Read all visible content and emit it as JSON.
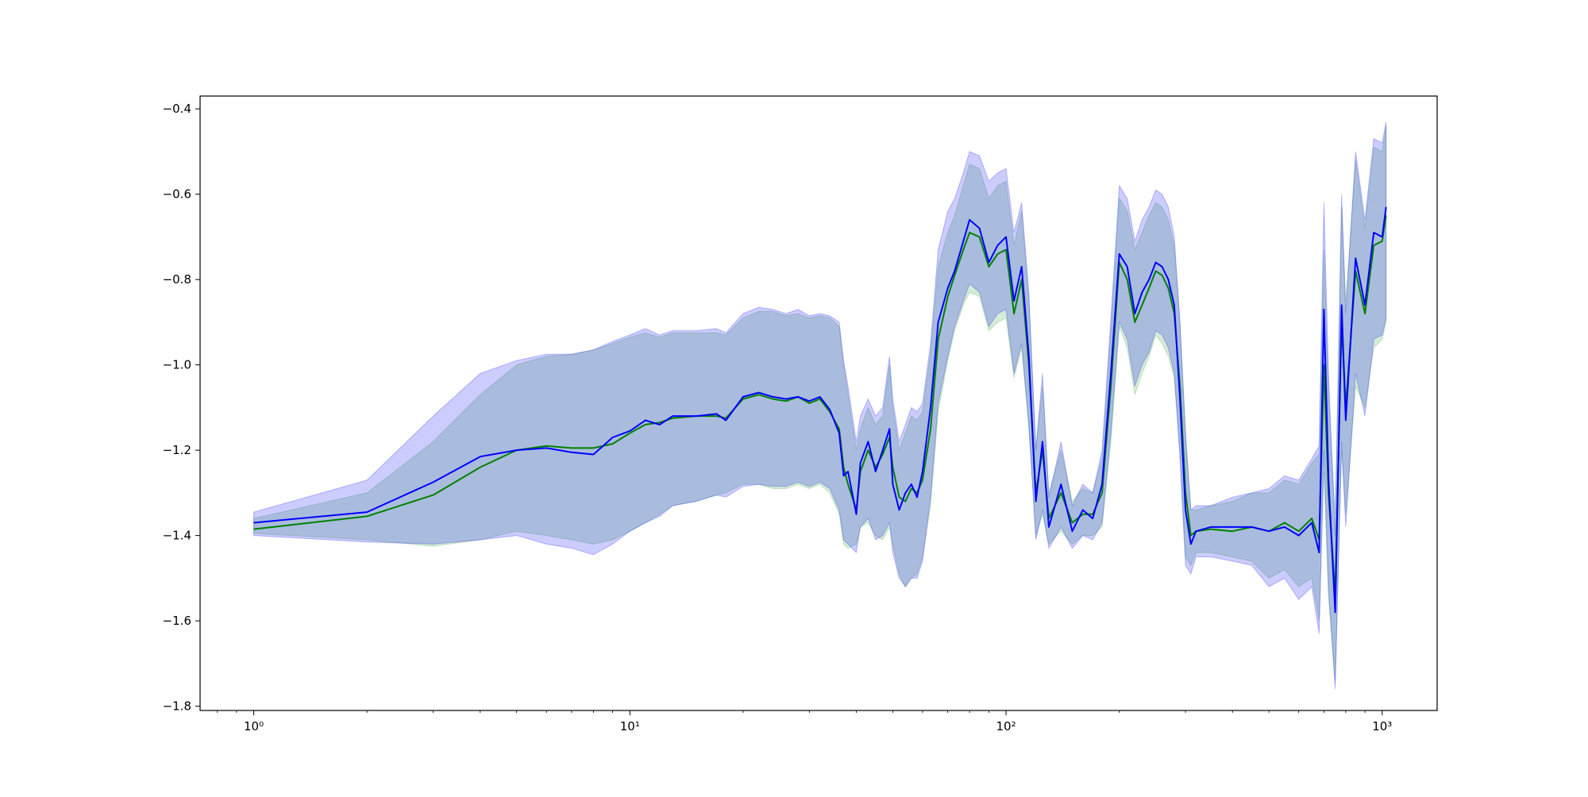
{
  "chart_data": {
    "type": "line",
    "title": "",
    "xlabel": "",
    "ylabel": "",
    "xscale": "log",
    "xlim": [
      0.72,
      1400
    ],
    "ylim": [
      -1.81,
      -0.37
    ],
    "grid": false,
    "legend": "none",
    "x_ticks": [
      {
        "value": 1,
        "label": "10⁰"
      },
      {
        "value": 10,
        "label": "10¹"
      },
      {
        "value": 100,
        "label": "10²"
      },
      {
        "value": 1000,
        "label": "10³"
      }
    ],
    "y_ticks": [
      {
        "value": -0.4,
        "label": "−0.4"
      },
      {
        "value": -0.6,
        "label": "−0.6"
      },
      {
        "value": -0.8,
        "label": "−0.8"
      },
      {
        "value": -1.0,
        "label": "−1.0"
      },
      {
        "value": -1.2,
        "label": "−1.2"
      },
      {
        "value": -1.4,
        "label": "−1.4"
      },
      {
        "value": -1.6,
        "label": "−1.6"
      },
      {
        "value": -1.8,
        "label": "−1.8"
      }
    ],
    "series": [
      {
        "color": "#008000",
        "band_color": "#2ca02c",
        "x": [
          1,
          2,
          3,
          4,
          5,
          6,
          7,
          8,
          9,
          10,
          11,
          12,
          13,
          15,
          17,
          18,
          20,
          22,
          24,
          26,
          28,
          30,
          32,
          34,
          36,
          37,
          38,
          40,
          41,
          43,
          45,
          47,
          49,
          50,
          52,
          54,
          56,
          58,
          60,
          63,
          66,
          70,
          73,
          77,
          80,
          85,
          90,
          95,
          100,
          105,
          110,
          115,
          120,
          125,
          130,
          140,
          150,
          160,
          170,
          180,
          190,
          200,
          210,
          220,
          230,
          240,
          250,
          260,
          270,
          280,
          290,
          300,
          310,
          320,
          350,
          400,
          450,
          500,
          550,
          600,
          650,
          680,
          700,
          720,
          750,
          780,
          800,
          850,
          900,
          950,
          1000,
          1024
        ],
        "y": [
          -1.385,
          -1.355,
          -1.305,
          -1.24,
          -1.2,
          -1.19,
          -1.195,
          -1.195,
          -1.185,
          -1.16,
          -1.14,
          -1.135,
          -1.125,
          -1.12,
          -1.12,
          -1.125,
          -1.08,
          -1.07,
          -1.08,
          -1.085,
          -1.075,
          -1.09,
          -1.08,
          -1.11,
          -1.15,
          -1.24,
          -1.28,
          -1.34,
          -1.25,
          -1.2,
          -1.24,
          -1.21,
          -1.17,
          -1.24,
          -1.31,
          -1.32,
          -1.29,
          -1.3,
          -1.27,
          -1.15,
          -0.94,
          -0.84,
          -0.79,
          -0.73,
          -0.69,
          -0.7,
          -0.77,
          -0.74,
          -0.73,
          -0.88,
          -0.8,
          -1.0,
          -1.3,
          -1.2,
          -1.36,
          -1.3,
          -1.37,
          -1.35,
          -1.35,
          -1.3,
          -1.05,
          -0.76,
          -0.8,
          -0.9,
          -0.86,
          -0.82,
          -0.78,
          -0.79,
          -0.82,
          -0.88,
          -1.05,
          -1.3,
          -1.4,
          -1.39,
          -1.385,
          -1.39,
          -1.38,
          -1.39,
          -1.37,
          -1.39,
          -1.36,
          -1.41,
          -1.0,
          -1.3,
          -1.54,
          -0.9,
          -1.1,
          -0.78,
          -0.88,
          -0.72,
          -0.71,
          -0.65
        ],
        "band_low": [
          -1.395,
          -1.41,
          -1.425,
          -1.41,
          -1.39,
          -1.4,
          -1.41,
          -1.42,
          -1.41,
          -1.39,
          -1.37,
          -1.35,
          -1.33,
          -1.32,
          -1.305,
          -1.3,
          -1.28,
          -1.28,
          -1.29,
          -1.29,
          -1.28,
          -1.29,
          -1.28,
          -1.3,
          -1.35,
          -1.42,
          -1.43,
          -1.42,
          -1.38,
          -1.37,
          -1.4,
          -1.41,
          -1.38,
          -1.42,
          -1.49,
          -1.52,
          -1.5,
          -1.49,
          -1.45,
          -1.33,
          -1.11,
          -0.99,
          -0.92,
          -0.86,
          -0.83,
          -0.84,
          -0.92,
          -0.9,
          -0.89,
          -1.03,
          -0.96,
          -1.15,
          -1.4,
          -1.35,
          -1.42,
          -1.39,
          -1.42,
          -1.4,
          -1.4,
          -1.38,
          -1.18,
          -0.91,
          -0.96,
          -1.07,
          -1.02,
          -0.98,
          -0.93,
          -0.95,
          -0.98,
          -1.03,
          -1.2,
          -1.45,
          -1.47,
          -1.44,
          -1.44,
          -1.45,
          -1.46,
          -1.5,
          -1.48,
          -1.52,
          -1.5,
          -1.6,
          -1.25,
          -1.55,
          -1.74,
          -1.2,
          -1.35,
          -1.05,
          -1.1,
          -0.96,
          -0.94,
          -0.9
        ],
        "band_high": [
          -1.36,
          -1.3,
          -1.18,
          -1.07,
          -1.0,
          -0.98,
          -0.975,
          -0.965,
          -0.95,
          -0.935,
          -0.925,
          -0.935,
          -0.925,
          -0.925,
          -0.925,
          -0.93,
          -0.89,
          -0.875,
          -0.875,
          -0.885,
          -0.88,
          -0.89,
          -0.885,
          -0.89,
          -0.91,
          -1.0,
          -1.07,
          -1.2,
          -1.15,
          -1.1,
          -1.14,
          -1.12,
          -1.0,
          -1.1,
          -1.2,
          -1.16,
          -1.12,
          -1.13,
          -1.11,
          -0.97,
          -0.77,
          -0.69,
          -0.65,
          -0.58,
          -0.53,
          -0.54,
          -0.61,
          -0.58,
          -0.57,
          -0.72,
          -0.64,
          -0.85,
          -1.2,
          -1.05,
          -1.3,
          -1.2,
          -1.32,
          -1.29,
          -1.3,
          -1.22,
          -0.92,
          -0.61,
          -0.64,
          -0.73,
          -0.69,
          -0.65,
          -0.62,
          -0.63,
          -0.66,
          -0.72,
          -0.9,
          -1.15,
          -1.34,
          -1.34,
          -1.33,
          -1.32,
          -1.3,
          -1.3,
          -1.27,
          -1.28,
          -1.23,
          -1.21,
          -0.73,
          -1.07,
          -1.35,
          -0.63,
          -0.85,
          -0.52,
          -0.68,
          -0.49,
          -0.5,
          -0.44
        ]
      },
      {
        "color": "#0000ff",
        "band_color": "#0000ff",
        "x": [
          1,
          2,
          3,
          4,
          5,
          6,
          7,
          8,
          9,
          10,
          11,
          12,
          13,
          15,
          17,
          18,
          20,
          22,
          24,
          26,
          28,
          30,
          32,
          34,
          36,
          37,
          38,
          40,
          41,
          43,
          45,
          47,
          49,
          50,
          52,
          54,
          56,
          58,
          60,
          63,
          66,
          70,
          73,
          77,
          80,
          85,
          90,
          95,
          100,
          105,
          110,
          115,
          120,
          125,
          130,
          140,
          150,
          160,
          170,
          180,
          190,
          200,
          210,
          220,
          230,
          240,
          250,
          260,
          270,
          280,
          290,
          300,
          310,
          320,
          350,
          400,
          450,
          500,
          550,
          600,
          650,
          680,
          700,
          720,
          750,
          780,
          800,
          850,
          900,
          950,
          1000,
          1024
        ],
        "y": [
          -1.37,
          -1.345,
          -1.275,
          -1.215,
          -1.2,
          -1.195,
          -1.205,
          -1.21,
          -1.17,
          -1.155,
          -1.13,
          -1.14,
          -1.12,
          -1.12,
          -1.115,
          -1.13,
          -1.075,
          -1.065,
          -1.075,
          -1.08,
          -1.075,
          -1.085,
          -1.075,
          -1.105,
          -1.16,
          -1.26,
          -1.25,
          -1.35,
          -1.23,
          -1.18,
          -1.25,
          -1.2,
          -1.15,
          -1.28,
          -1.34,
          -1.3,
          -1.28,
          -1.31,
          -1.25,
          -1.1,
          -0.9,
          -0.82,
          -0.78,
          -0.71,
          -0.66,
          -0.68,
          -0.76,
          -0.72,
          -0.7,
          -0.85,
          -0.77,
          -0.98,
          -1.32,
          -1.18,
          -1.38,
          -1.28,
          -1.39,
          -1.34,
          -1.36,
          -1.28,
          -1.02,
          -0.74,
          -0.77,
          -0.88,
          -0.83,
          -0.8,
          -0.76,
          -0.77,
          -0.8,
          -0.86,
          -1.08,
          -1.34,
          -1.42,
          -1.39,
          -1.38,
          -1.38,
          -1.38,
          -1.39,
          -1.38,
          -1.4,
          -1.37,
          -1.44,
          -0.87,
          -1.27,
          -1.58,
          -0.86,
          -1.13,
          -0.75,
          -0.86,
          -0.69,
          -0.7,
          -0.63
        ],
        "band_low": [
          -1.4,
          -1.415,
          -1.42,
          -1.41,
          -1.4,
          -1.42,
          -1.43,
          -1.445,
          -1.42,
          -1.39,
          -1.37,
          -1.355,
          -1.33,
          -1.32,
          -1.305,
          -1.31,
          -1.285,
          -1.28,
          -1.285,
          -1.285,
          -1.275,
          -1.285,
          -1.275,
          -1.29,
          -1.34,
          -1.41,
          -1.42,
          -1.44,
          -1.38,
          -1.36,
          -1.41,
          -1.4,
          -1.37,
          -1.44,
          -1.5,
          -1.52,
          -1.5,
          -1.5,
          -1.46,
          -1.31,
          -1.09,
          -0.98,
          -0.91,
          -0.85,
          -0.81,
          -0.83,
          -0.91,
          -0.88,
          -0.87,
          -1.02,
          -0.95,
          -1.14,
          -1.41,
          -1.34,
          -1.43,
          -1.38,
          -1.43,
          -1.4,
          -1.41,
          -1.37,
          -1.16,
          -0.9,
          -0.94,
          -1.05,
          -1.0,
          -0.97,
          -0.92,
          -0.93,
          -0.96,
          -1.02,
          -1.22,
          -1.47,
          -1.49,
          -1.45,
          -1.45,
          -1.46,
          -1.47,
          -1.52,
          -1.5,
          -1.55,
          -1.52,
          -1.63,
          -1.2,
          -1.52,
          -1.76,
          -1.18,
          -1.38,
          -1.02,
          -1.12,
          -0.94,
          -0.93,
          -0.89
        ],
        "band_high": [
          -1.345,
          -1.27,
          -1.12,
          -1.02,
          -0.99,
          -0.975,
          -0.975,
          -0.965,
          -0.945,
          -0.93,
          -0.915,
          -0.93,
          -0.92,
          -0.92,
          -0.915,
          -0.925,
          -0.88,
          -0.865,
          -0.87,
          -0.88,
          -0.87,
          -0.885,
          -0.88,
          -0.885,
          -0.9,
          -0.99,
          -1.05,
          -1.18,
          -1.12,
          -1.08,
          -1.12,
          -1.1,
          -0.98,
          -1.08,
          -1.18,
          -1.14,
          -1.1,
          -1.11,
          -1.09,
          -0.95,
          -0.73,
          -0.64,
          -0.61,
          -0.55,
          -0.5,
          -0.51,
          -0.57,
          -0.55,
          -0.54,
          -0.69,
          -0.62,
          -0.83,
          -1.2,
          -1.02,
          -1.31,
          -1.18,
          -1.33,
          -1.28,
          -1.3,
          -1.2,
          -0.89,
          -0.58,
          -0.61,
          -0.71,
          -0.66,
          -0.63,
          -0.59,
          -0.6,
          -0.63,
          -0.7,
          -0.9,
          -1.17,
          -1.34,
          -1.33,
          -1.33,
          -1.31,
          -1.3,
          -1.29,
          -1.26,
          -1.27,
          -1.22,
          -1.19,
          -0.62,
          -1.02,
          -1.4,
          -0.6,
          -0.88,
          -0.5,
          -0.66,
          -0.47,
          -0.48,
          -0.43
        ]
      }
    ]
  }
}
